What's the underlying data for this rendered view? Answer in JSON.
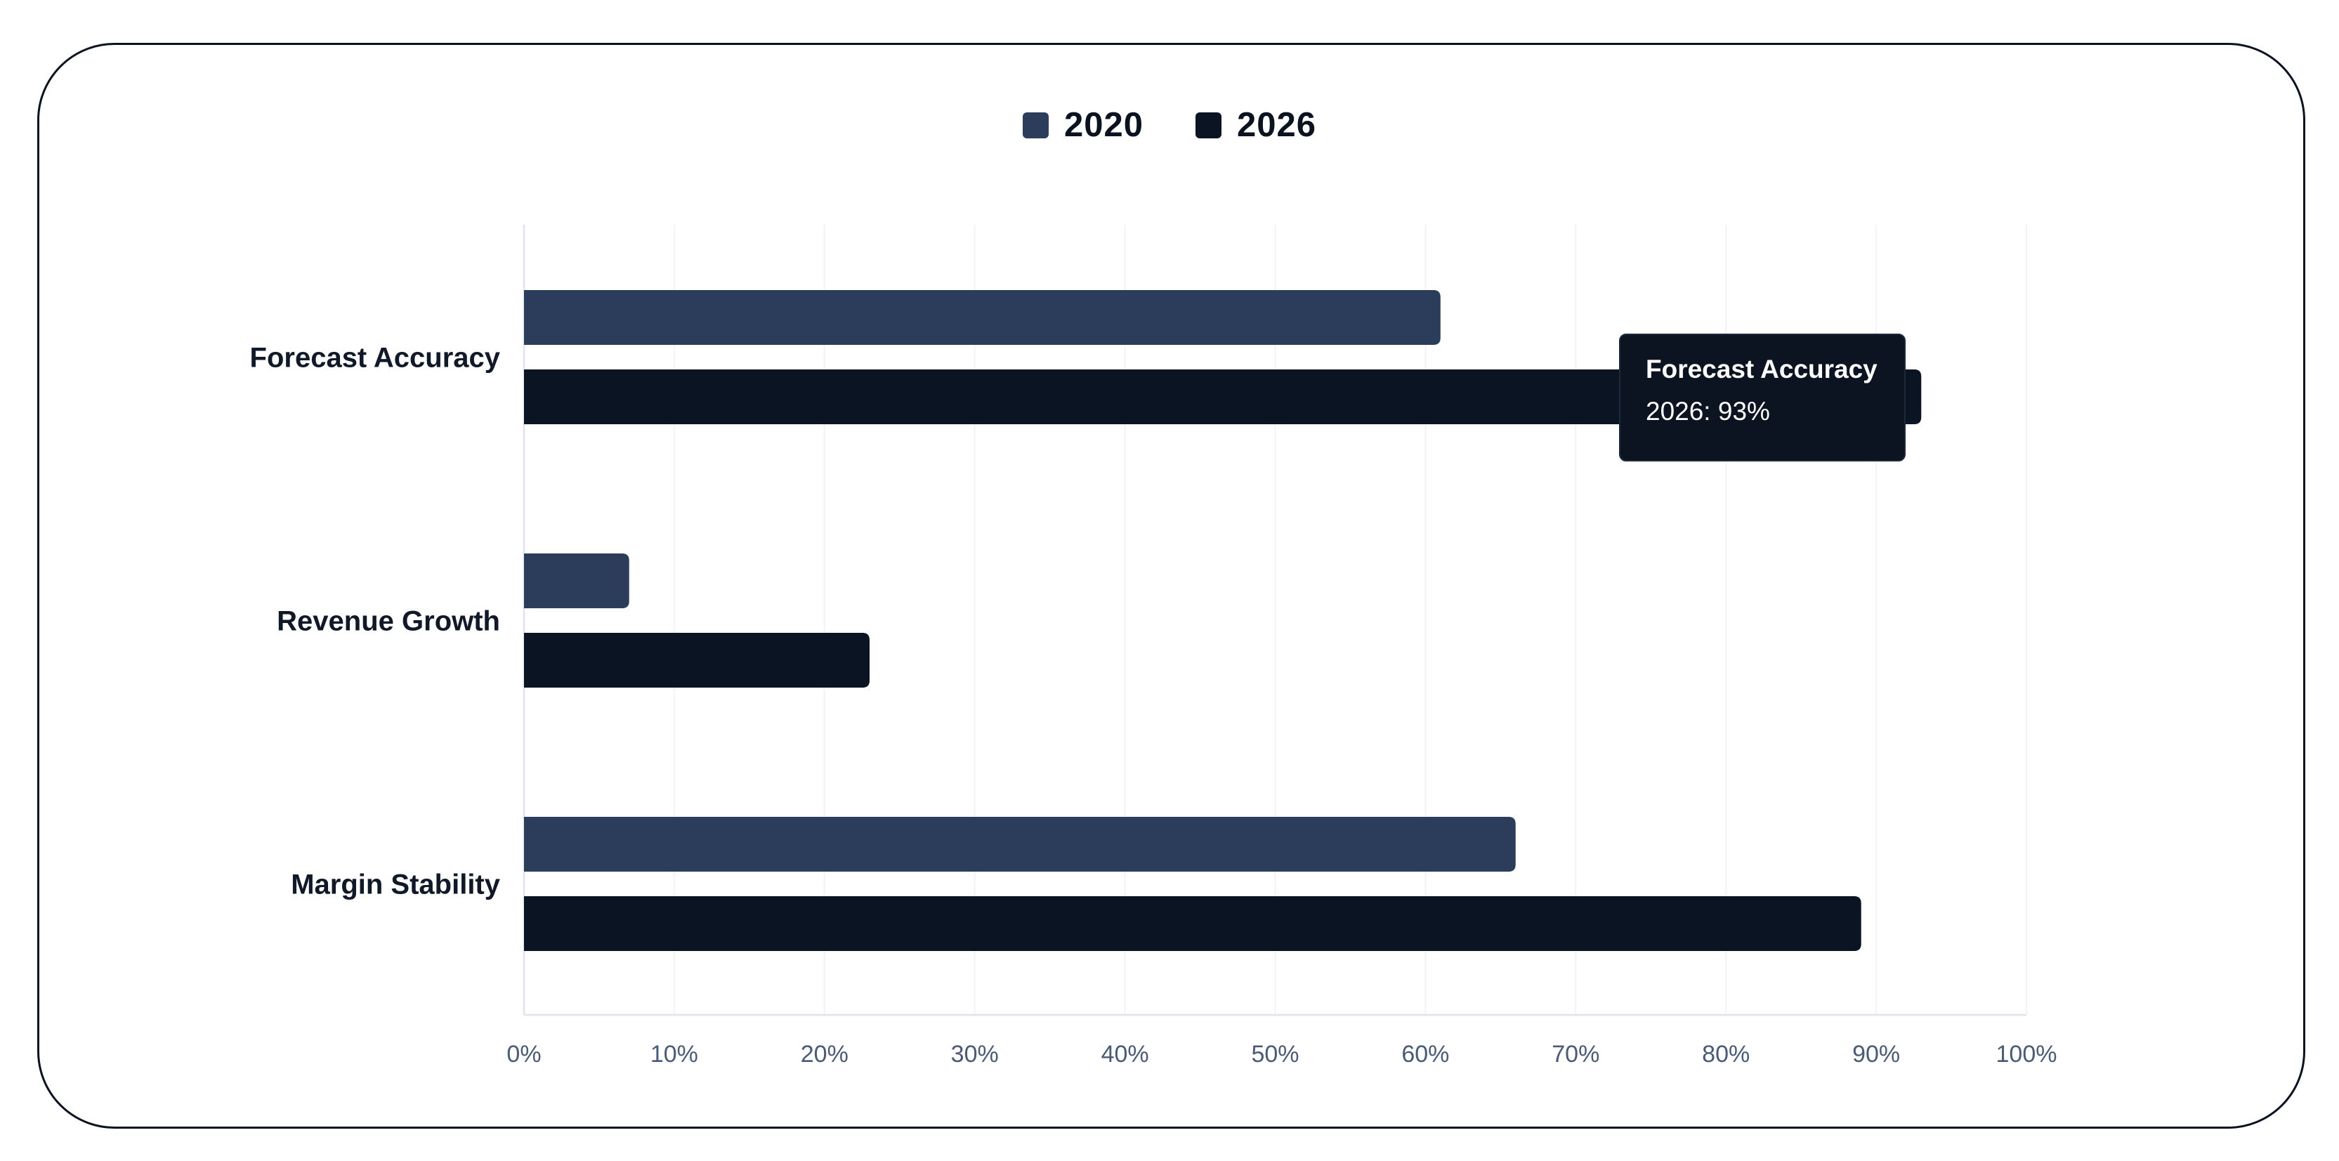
{
  "chart_data": {
    "type": "bar",
    "orientation": "horizontal",
    "categories": [
      "Forecast Accuracy",
      "Revenue Growth",
      "Margin Stability"
    ],
    "series": [
      {
        "name": "2020",
        "values": [
          61,
          7,
          66
        ],
        "color": "#2b3d5a"
      },
      {
        "name": "2026",
        "values": [
          93,
          23,
          89
        ],
        "color": "#0b1422"
      }
    ],
    "xlim": [
      0,
      100
    ],
    "x_ticks": [
      0,
      10,
      20,
      30,
      40,
      50,
      60,
      70,
      80,
      90,
      100
    ],
    "x_tick_labels": [
      "0%",
      "10%",
      "20%",
      "30%",
      "40%",
      "50%",
      "60%",
      "70%",
      "80%",
      "90%",
      "100%"
    ],
    "grid": true,
    "legend_position": "top-center",
    "title": "",
    "xlabel": "",
    "ylabel": ""
  },
  "tooltip": {
    "title": "Forecast Accuracy",
    "value": "2026: 93%"
  }
}
